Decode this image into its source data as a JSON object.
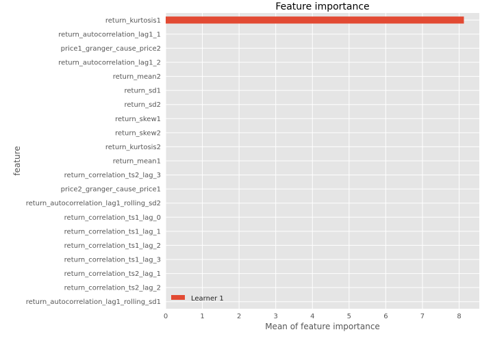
{
  "chart_data": {
    "type": "bar",
    "orientation": "horizontal",
    "title": "Feature importance",
    "xlabel": "Mean of feature importance",
    "ylabel": "feature",
    "xlim": [
      0,
      8.55
    ],
    "xticks": [
      0,
      1,
      2,
      3,
      4,
      5,
      6,
      7,
      8
    ],
    "grid": true,
    "legend_position": "bottom-left",
    "categories": [
      "return_kurtosis1",
      "return_autocorrelation_lag1_1",
      "price1_granger_cause_price2",
      "return_autocorrelation_lag1_2",
      "return_mean2",
      "return_sd1",
      "return_sd2",
      "return_skew1",
      "return_skew2",
      "return_kurtosis2",
      "return_mean1",
      "return_correlation_ts2_lag_3",
      "price2_granger_cause_price1",
      "return_autocorrelation_lag1_rolling_sd2",
      "return_correlation_ts1_lag_0",
      "return_correlation_ts1_lag_1",
      "return_correlation_ts1_lag_2",
      "return_correlation_ts1_lag_3",
      "return_correlation_ts2_lag_1",
      "return_correlation_ts2_lag_2",
      "return_autocorrelation_lag1_rolling_sd1"
    ],
    "series": [
      {
        "name": "Learner 1",
        "color": "#e24a33",
        "values": [
          8.13,
          0,
          0,
          0,
          0,
          0,
          0,
          0,
          0,
          0,
          0,
          0,
          0,
          0,
          0,
          0,
          0,
          0,
          0,
          0,
          0
        ]
      }
    ]
  },
  "colors": {
    "plot_background": "#e5e5e5",
    "grid": "#ffffff",
    "bar": "#e24a33",
    "tick_text": "#555555"
  }
}
